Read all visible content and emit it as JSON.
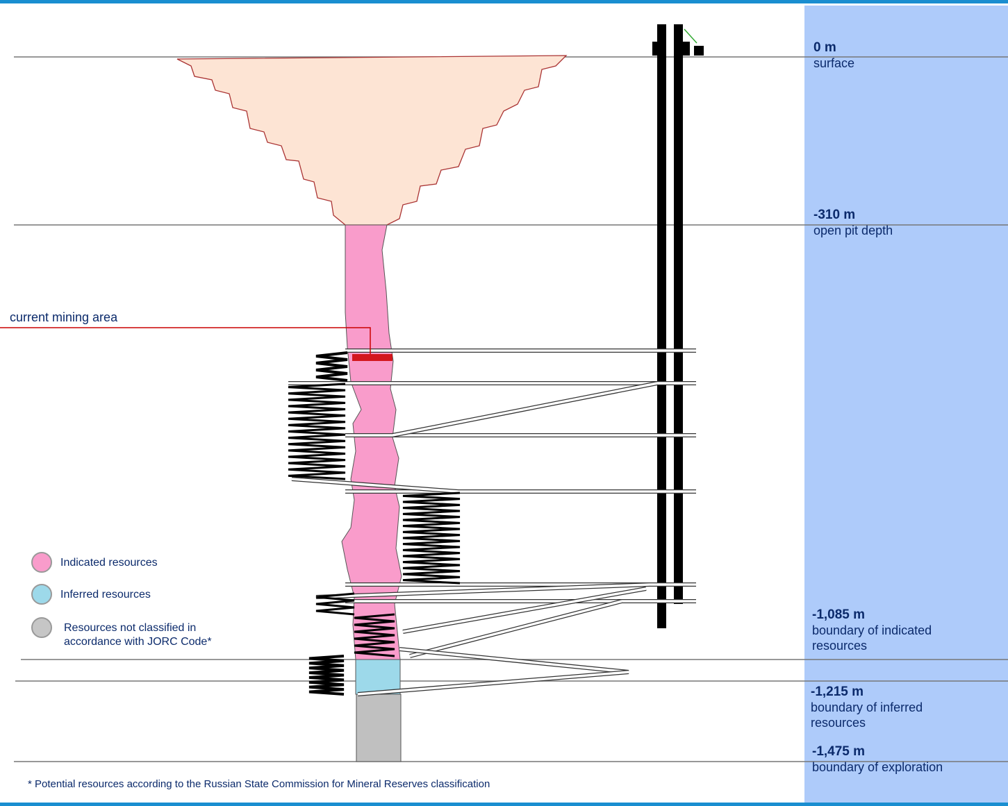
{
  "levels": [
    {
      "depth": "0 m",
      "description": "surface"
    },
    {
      "depth": "-310 m",
      "description": "open pit depth"
    },
    {
      "depth": "-1,085 m",
      "description": "boundary of indicated resources"
    },
    {
      "depth": "-1,215 m",
      "description": "boundary of inferred resources"
    },
    {
      "depth": "-1,475 m",
      "description": "boundary of exploration"
    }
  ],
  "callout": "current mining area",
  "legend": [
    "Indicated resources",
    "Inferred resources",
    "Resources not classified in accordance with JORC Code*"
  ],
  "footnote": "* Potential resources according to the Russian State Commission for Mineral Reserves classification"
}
